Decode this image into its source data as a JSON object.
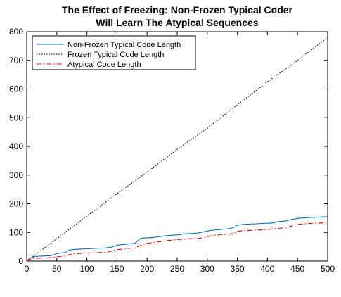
{
  "chart_data": {
    "type": "line",
    "title": [
      "The Effect of Freezing: Non-Frozen Typical Coder",
      "Will Learn The Atypical Sequences"
    ],
    "xlabel": "",
    "ylabel": "",
    "xlim": [
      0,
      500
    ],
    "ylim": [
      0,
      800
    ],
    "xticks": [
      0,
      50,
      100,
      150,
      200,
      250,
      300,
      350,
      400,
      450,
      500
    ],
    "yticks": [
      0,
      100,
      200,
      300,
      400,
      500,
      600,
      700,
      800
    ],
    "grid": false,
    "legend_position": "top-left",
    "series": [
      {
        "name": "Non-Frozen Typical Code Length",
        "color": "#0072BD",
        "style": "solid",
        "x": [
          0,
          5,
          10,
          15,
          20,
          40,
          45,
          50,
          55,
          65,
          70,
          80,
          90,
          100,
          110,
          120,
          130,
          140,
          150,
          160,
          170,
          180,
          185,
          190,
          210,
          215,
          230,
          240,
          255,
          260,
          280,
          290,
          300,
          310,
          320,
          335,
          345,
          350,
          360,
          380,
          400,
          410,
          415,
          430,
          440,
          450,
          470,
          500
        ],
        "y": [
          0,
          9,
          14,
          16,
          17,
          19,
          22,
          26,
          28,
          30,
          38,
          41,
          42,
          43,
          44,
          45,
          46,
          48,
          55,
          58,
          60,
          62,
          72,
          80,
          82,
          84,
          88,
          90,
          92,
          95,
          97,
          100,
          105,
          108,
          110,
          113,
          118,
          125,
          128,
          130,
          132,
          133,
          137,
          140,
          145,
          149,
          152,
          155
        ]
      },
      {
        "name": "Frozen Typical Code Length",
        "color": "#000000",
        "style": "dotted",
        "x": [
          0,
          50,
          100,
          150,
          200,
          250,
          300,
          350,
          400,
          450,
          500
        ],
        "y": [
          0,
          78,
          157,
          235,
          310,
          390,
          463,
          545,
          625,
          700,
          780
        ]
      },
      {
        "name": "Atypical Code Length",
        "color": "#FF0000",
        "style": "dashdot",
        "x": [
          0,
          5,
          10,
          20,
          40,
          50,
          65,
          70,
          80,
          100,
          120,
          135,
          150,
          160,
          170,
          180,
          190,
          200,
          215,
          225,
          235,
          250,
          265,
          280,
          290,
          300,
          310,
          325,
          340,
          350,
          360,
          380,
          400,
          410,
          430,
          440,
          450,
          470,
          500
        ],
        "y": [
          0,
          5,
          8,
          10,
          12,
          15,
          18,
          22,
          26,
          28,
          30,
          32,
          40,
          42,
          45,
          46,
          55,
          62,
          66,
          69,
          72,
          75,
          77,
          79,
          80,
          85,
          90,
          92,
          95,
          104,
          106,
          108,
          110,
          113,
          116,
          122,
          128,
          131,
          134
        ]
      }
    ]
  }
}
